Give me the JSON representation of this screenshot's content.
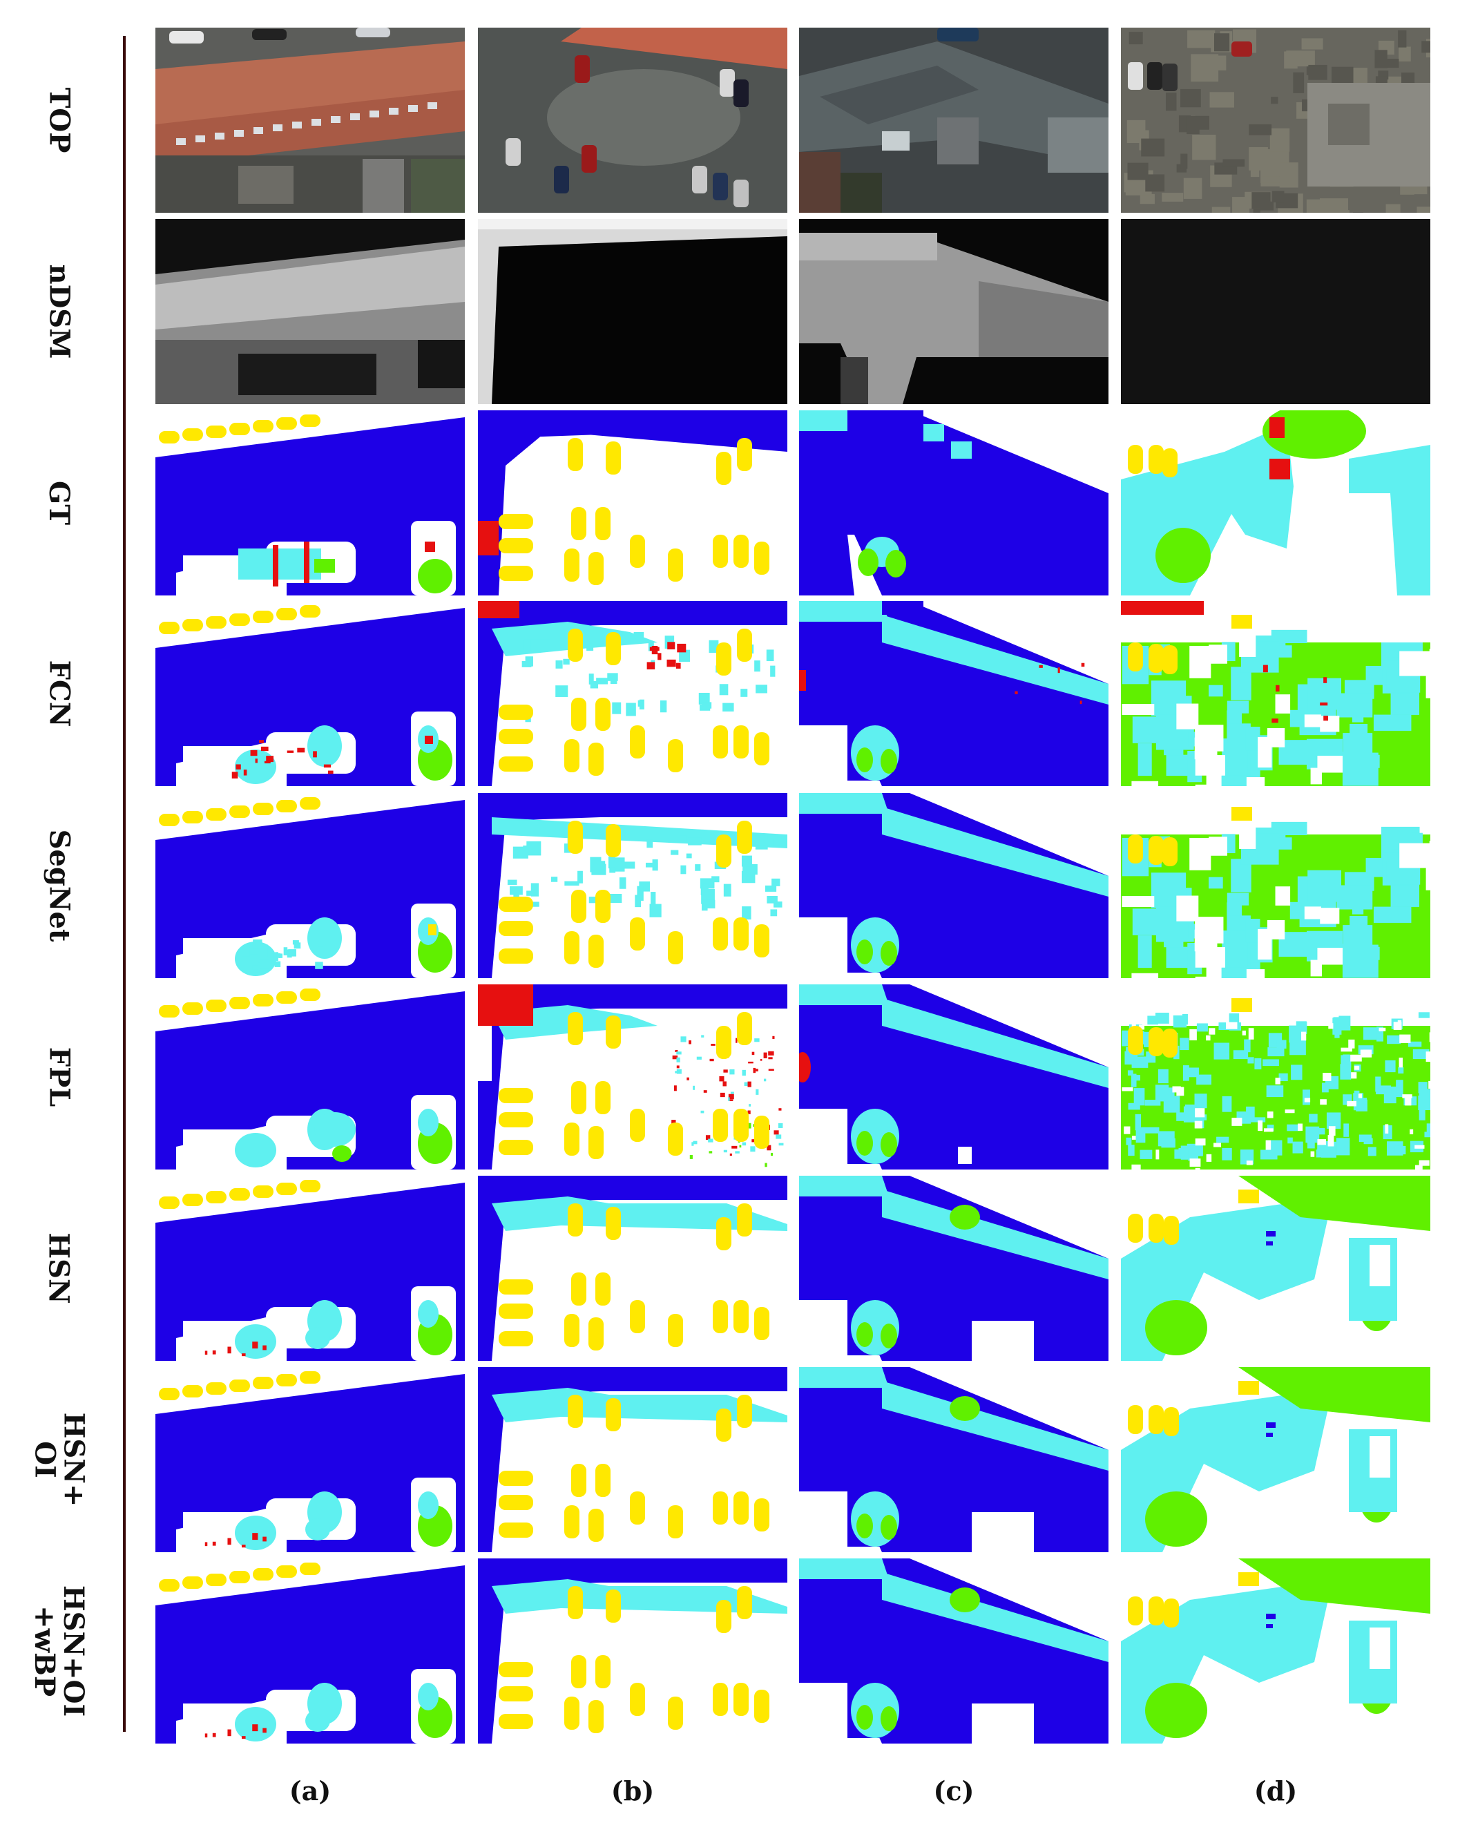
{
  "rows": [
    "TOP",
    "nDSM",
    "GT",
    "FCN",
    "SegNet",
    "FPL",
    "HSN",
    "HSN+\nOI",
    "HSN+OI\n+wBP"
  ],
  "columns": [
    "(a)",
    "(b)",
    "(c)",
    "(d)"
  ],
  "class_colors": {
    "impervious_surface": "#ffffff",
    "building": "#1e00e6",
    "low_vegetation": "#5ff0f0",
    "tree": "#60f000",
    "car": "#ffe800",
    "clutter": "#e61010"
  }
}
